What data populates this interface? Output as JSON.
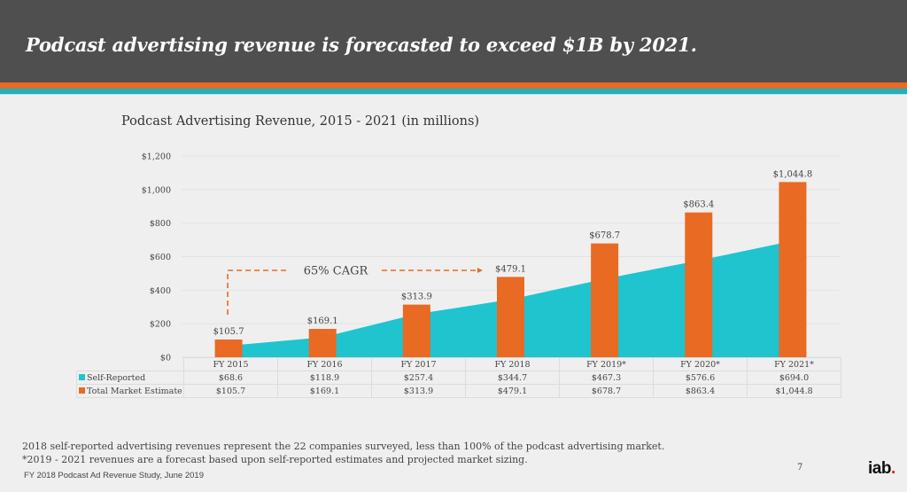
{
  "header": {
    "title": "Podcast advertising revenue is forecasted to exceed $1B by 2021."
  },
  "colors": {
    "header_bg": "#4f4f4f",
    "accent_orange": "#e86a23",
    "accent_teal": "#1fc4cf",
    "logo_dot": "#e8202a"
  },
  "chart_data": {
    "type": "bar",
    "title": "Podcast Advertising Revenue, 2015 - 2021 (in millions)",
    "xlabel": "",
    "ylabel": "",
    "ylim": [
      0,
      1200
    ],
    "yticks": [
      0,
      200,
      400,
      600,
      800,
      1000,
      1200
    ],
    "ytick_labels": [
      "$0",
      "$200",
      "$400",
      "$600",
      "$800",
      "$1,000",
      "$1,200"
    ],
    "grid": true,
    "categories": [
      "FY 2015",
      "FY 2016",
      "FY 2017",
      "FY 2018",
      "FY 2019*",
      "FY 2020*",
      "FY 2021*"
    ],
    "series": [
      {
        "name": "Self-Reported",
        "mark": "area",
        "color": "#1fc4cf",
        "values": [
          68.6,
          118.9,
          257.4,
          344.7,
          467.3,
          576.6,
          694.0
        ],
        "labels": [
          "$68.6",
          "$118.9",
          "$257.4",
          "$344.7",
          "$467.3",
          "$576.6",
          "$694.0"
        ]
      },
      {
        "name": "Total Market Estimate",
        "mark": "bar",
        "color": "#e86a23",
        "values": [
          105.7,
          169.1,
          313.9,
          479.1,
          678.7,
          863.4,
          1044.8
        ],
        "labels": [
          "$105.7",
          "$169.1",
          "$313.9",
          "$479.1",
          "$678.7",
          "$863.4",
          "$1,044.8"
        ]
      }
    ],
    "annotation": {
      "text": "65% CAGR",
      "from_category": "FY 2015",
      "to_category": "FY 2018"
    },
    "legend": "data-table-below"
  },
  "footer": {
    "note1": "2018 self-reported advertising revenues represent the 22 companies surveyed, less than 100% of the podcast advertising market.",
    "note2": "*2019 - 2021 revenues are a forecast based upon self-reported estimates and projected market sizing.",
    "source": "FY 2018 Podcast Ad Revenue Study, June 2019",
    "page_number": "7",
    "logo_text": "iab",
    "logo_dot": "."
  }
}
